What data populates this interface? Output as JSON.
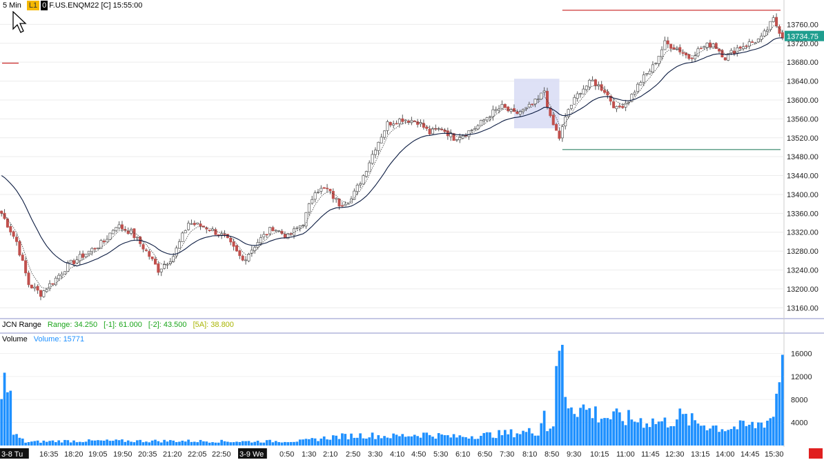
{
  "header": {
    "timeframe": "5 Min",
    "link": "L1",
    "level": "0",
    "symbol": "F.US.ENQM22 [C] 15:55:00"
  },
  "range_study": {
    "name": "JCN Range",
    "range": "Range: 34.250",
    "prev1": "[-1]: 61.000",
    "prev2": "[-2]: 43.500",
    "avg": "[5A]: 38.800",
    "colors": {
      "range": "#1aa51a",
      "prev1": "#1aa51a",
      "prev2": "#1aa51a",
      "avg": "#a8b400"
    }
  },
  "volume_study": {
    "name": "Volume",
    "value": "Volume: 15771",
    "color": "#1e90ff"
  },
  "colors": {
    "up": "#ffffff",
    "down": "#c0504d",
    "wick": "#555555",
    "ma_slow": "#0a1a40",
    "ma_fast": "#333333",
    "volume": "#1e90ff",
    "last_price_bg": "#1f9e8f",
    "high_line": "#c00000",
    "low_line": "#107050",
    "highlight": "#d8dcf5"
  },
  "chart_data": {
    "type": "candlestick",
    "price_axis": {
      "min": 13140,
      "max": 13800,
      "ticks": [
        13160,
        13200,
        13240,
        13280,
        13320,
        13360,
        13400,
        13440,
        13480,
        13520,
        13560,
        13600,
        13640,
        13680,
        13720,
        13760
      ]
    },
    "last_price": "13734.75",
    "volume_axis": {
      "min": 0,
      "max": 17500,
      "ticks": [
        4000,
        8000,
        12000,
        16000
      ]
    },
    "x_labels": [
      "3-8 Tu",
      "16:35",
      "18:20",
      "19:05",
      "19:50",
      "20:35",
      "21:20",
      "22:05",
      "22:50",
      "3-9 We",
      "0:50",
      "1:30",
      "2:10",
      "2:50",
      "3:30",
      "4:10",
      "4:50",
      "5:30",
      "6:10",
      "6:50",
      "7:30",
      "8:10",
      "8:50",
      "9:30",
      "10:15",
      "11:00",
      "11:45",
      "12:30",
      "13:15",
      "14:00",
      "14:45",
      "15:30"
    ],
    "price_anchors": [
      [
        0,
        13360
      ],
      [
        5,
        13300
      ],
      [
        9,
        13210
      ],
      [
        13,
        13190
      ],
      [
        17,
        13215
      ],
      [
        22,
        13250
      ],
      [
        28,
        13275
      ],
      [
        34,
        13300
      ],
      [
        38,
        13335
      ],
      [
        43,
        13320
      ],
      [
        48,
        13280
      ],
      [
        52,
        13240
      ],
      [
        57,
        13270
      ],
      [
        62,
        13340
      ],
      [
        68,
        13330
      ],
      [
        74,
        13310
      ],
      [
        80,
        13260
      ],
      [
        85,
        13300
      ],
      [
        90,
        13330
      ],
      [
        95,
        13310
      ],
      [
        100,
        13340
      ],
      [
        104,
        13410
      ],
      [
        108,
        13410
      ],
      [
        112,
        13380
      ],
      [
        116,
        13390
      ],
      [
        120,
        13440
      ],
      [
        124,
        13500
      ],
      [
        128,
        13550
      ],
      [
        133,
        13560
      ],
      [
        138,
        13555
      ],
      [
        142,
        13530
      ],
      [
        146,
        13540
      ],
      [
        150,
        13520
      ],
      [
        154,
        13530
      ],
      [
        158,
        13545
      ],
      [
        162,
        13570
      ],
      [
        166,
        13585
      ],
      [
        170,
        13570
      ],
      [
        174,
        13580
      ],
      [
        178,
        13600
      ],
      [
        180,
        13620
      ],
      [
        182,
        13560
      ],
      [
        185,
        13520
      ],
      [
        188,
        13580
      ],
      [
        192,
        13620
      ],
      [
        196,
        13640
      ],
      [
        200,
        13620
      ],
      [
        204,
        13580
      ],
      [
        208,
        13600
      ],
      [
        212,
        13640
      ],
      [
        216,
        13670
      ],
      [
        220,
        13720
      ],
      [
        224,
        13710
      ],
      [
        228,
        13690
      ],
      [
        232,
        13710
      ],
      [
        236,
        13720
      ],
      [
        240,
        13690
      ],
      [
        244,
        13710
      ],
      [
        248,
        13720
      ],
      [
        252,
        13730
      ],
      [
        256,
        13770
      ],
      [
        259,
        13735
      ]
    ],
    "volume_anchors": [
      [
        0,
        7000
      ],
      [
        2,
        14000
      ],
      [
        3,
        8000
      ],
      [
        4,
        2000
      ],
      [
        8,
        600
      ],
      [
        20,
        800
      ],
      [
        40,
        800
      ],
      [
        60,
        800
      ],
      [
        80,
        700
      ],
      [
        100,
        800
      ],
      [
        110,
        1500
      ],
      [
        120,
        1800
      ],
      [
        130,
        1600
      ],
      [
        140,
        2000
      ],
      [
        150,
        1500
      ],
      [
        160,
        1800
      ],
      [
        170,
        2200
      ],
      [
        178,
        2500
      ],
      [
        180,
        6000
      ],
      [
        181,
        3000
      ],
      [
        183,
        4000
      ],
      [
        185,
        17500
      ],
      [
        186,
        16000
      ],
      [
        187,
        9000
      ],
      [
        188,
        8000
      ],
      [
        190,
        7000
      ],
      [
        195,
        6000
      ],
      [
        200,
        5000
      ],
      [
        210,
        4500
      ],
      [
        220,
        4000
      ],
      [
        225,
        5000
      ],
      [
        230,
        4000
      ],
      [
        240,
        3000
      ],
      [
        250,
        3500
      ],
      [
        256,
        5000
      ],
      [
        257,
        9000
      ],
      [
        258,
        11000
      ],
      [
        259,
        15771
      ]
    ],
    "key_levels": {
      "high": 13790,
      "low": 13495
    },
    "opening_range_box": {
      "start_bar": 170,
      "end_bar": 185,
      "high": 13645,
      "low": 13540
    }
  }
}
